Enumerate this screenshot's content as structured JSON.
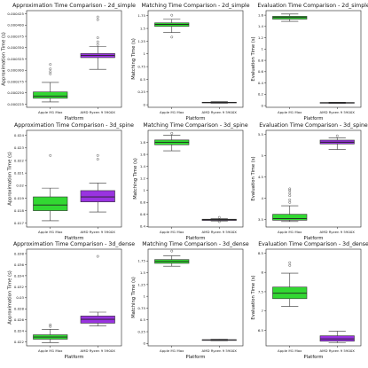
{
  "colors": {
    "apple": "#32d832",
    "amd": "#9933e0"
  },
  "chart_data": [
    {
      "type": "box",
      "title": "Approximation Time Comparison - 2d_simple",
      "xlabel": "Platform",
      "ylabel": "Approximation Time (s)",
      "categories": [
        "Apple M1 Max",
        "AMD Ryzen 9 5900X"
      ],
      "yticks": [
        0.000225,
        0.00025,
        0.000275,
        0.0003,
        0.000325,
        0.00035,
        0.000375,
        0.0004,
        0.000425
      ],
      "ylim": [
        0.000218,
        0.000432
      ],
      "series": [
        {
          "whislo": 0.00023,
          "q1": 0.000238,
          "med": 0.000243,
          "q3": 0.000252,
          "whishi": 0.000273,
          "fliers": [
            0.000292,
            0.000297,
            0.000303,
            0.000313
          ]
        },
        {
          "whislo": 0.000302,
          "q1": 0.000328,
          "med": 0.000333,
          "q3": 0.000337,
          "whishi": 0.000353,
          "fliers": [
            0.000357,
            0.000363,
            0.000372,
            0.000412,
            0.000418
          ]
        }
      ]
    },
    {
      "type": "box",
      "title": "Matching Time Comparison - 2d_simple",
      "xlabel": "Platform",
      "ylabel": "Matching Time (s)",
      "categories": [
        "Apple M1 Max",
        "AMD Ryzen 9 5900X"
      ],
      "yticks": [
        0,
        0.25,
        0.5,
        0.75,
        1.0,
        1.25,
        1.5,
        1.75
      ],
      "ylim": [
        -0.05,
        1.85
      ],
      "series": [
        {
          "whislo": 1.42,
          "q1": 1.54,
          "med": 1.58,
          "q3": 1.61,
          "whishi": 1.68,
          "fliers": [
            1.33,
            1.76
          ]
        },
        {
          "whislo": 0.03,
          "q1": 0.04,
          "med": 0.045,
          "q3": 0.05,
          "whishi": 0.06,
          "fliers": []
        }
      ]
    },
    {
      "type": "box",
      "title": "Evaluation Time Comparison - 2d_simple",
      "xlabel": "Platform",
      "ylabel": "Evaluation Time (s)",
      "categories": [
        "Apple M1 Max",
        "AMD Ryzen 9 5900X"
      ],
      "yticks": [
        0,
        0.2,
        0.4,
        0.6,
        0.8,
        1.0,
        1.2,
        1.4,
        1.6
      ],
      "ylim": [
        -0.03,
        1.68
      ],
      "series": [
        {
          "whislo": 1.49,
          "q1": 1.53,
          "med": 1.56,
          "q3": 1.58,
          "whishi": 1.62,
          "fliers": []
        },
        {
          "whislo": 0.04,
          "q1": 0.045,
          "med": 0.05,
          "q3": 0.055,
          "whishi": 0.06,
          "fliers": []
        }
      ]
    },
    {
      "type": "box",
      "title": "Approximation Time Comparison - 3d_spine",
      "xlabel": "Platform",
      "ylabel": "Approximation Time (s)",
      "categories": [
        "Apple M1 Max",
        "AMD Ryzen 9 5900X"
      ],
      "yticks": [
        0.017,
        0.018,
        0.019,
        0.02,
        0.021,
        0.022,
        0.023,
        0.024
      ],
      "ylim": [
        0.0167,
        0.0244
      ],
      "series": [
        {
          "whislo": 0.0172,
          "q1": 0.018,
          "med": 0.01845,
          "q3": 0.0191,
          "whishi": 0.0198,
          "fliers": [
            0.0224
          ]
        },
        {
          "whislo": 0.0179,
          "q1": 0.0187,
          "med": 0.0191,
          "q3": 0.0196,
          "whishi": 0.0202,
          "fliers": [
            0.0221,
            0.0224
          ]
        }
      ]
    },
    {
      "type": "box",
      "title": "Matching Time Comparison - 3d_spine",
      "xlabel": "Platform",
      "ylabel": "Matching Time (s)",
      "categories": [
        "Apple M1 Max",
        "AMD Ryzen 9 5900X"
      ],
      "yticks": [
        0.4,
        0.6,
        0.8,
        1.0,
        1.2,
        1.4,
        1.6,
        1.8
      ],
      "ylim": [
        0.39,
        2.0
      ],
      "series": [
        {
          "whislo": 1.66,
          "q1": 1.76,
          "med": 1.8,
          "q3": 1.84,
          "whishi": 1.92,
          "fliers": [
            1.95
          ]
        },
        {
          "whislo": 0.49,
          "q1": 0.5,
          "med": 0.51,
          "q3": 0.52,
          "whishi": 0.53,
          "fliers": [
            0.48,
            0.55
          ]
        }
      ]
    },
    {
      "type": "box",
      "title": "Evaluation Time Comparison - 3d_spine",
      "xlabel": "Platform",
      "ylabel": "Evaluation Time (s)",
      "categories": [
        "Apple M1 Max",
        "AMD Ryzen 9 5900X"
      ],
      "yticks": [
        3.5,
        4.0,
        4.5,
        5.0,
        5.5
      ],
      "ylim": [
        3.32,
        5.6
      ],
      "series": [
        {
          "whislo": 3.45,
          "q1": 3.48,
          "med": 3.52,
          "q3": 3.62,
          "whishi": 3.82,
          "fliers": [
            3.9,
            3.96,
            4.06,
            4.12,
            4.18,
            4.22
          ]
        },
        {
          "whislo": 5.15,
          "q1": 5.28,
          "med": 5.32,
          "q3": 5.37,
          "whishi": 5.42,
          "fliers": [
            5.47
          ]
        }
      ]
    },
    {
      "type": "box",
      "title": "Approximation Time Comparison - 3d_dense",
      "xlabel": "Platform",
      "ylabel": "Approximation Time (s)",
      "categories": [
        "Apple M1 Max",
        "AMD Ryzen 9 5900X"
      ],
      "yticks": [
        0.022,
        0.024,
        0.026,
        0.028,
        0.03,
        0.032,
        0.034,
        0.036,
        0.038
      ],
      "ylim": [
        0.0213,
        0.0388
      ],
      "series": [
        {
          "whislo": 0.0219,
          "q1": 0.0225,
          "med": 0.0229,
          "q3": 0.0233,
          "whishi": 0.0243,
          "fliers": [
            0.0248,
            0.0251
          ]
        },
        {
          "whislo": 0.0249,
          "q1": 0.0254,
          "med": 0.0261,
          "q3": 0.0267,
          "whishi": 0.0274,
          "fliers": [
            0.0375
          ]
        }
      ]
    },
    {
      "type": "box",
      "title": "Matching Time Comparison - 3d_dense",
      "xlabel": "Platform",
      "ylabel": "Matching Time (s)",
      "categories": [
        "Apple M1 Max",
        "AMD Ryzen 9 5900X"
      ],
      "yticks": [
        0,
        0.25,
        0.5,
        0.75,
        1.0,
        1.25,
        1.5,
        1.75
      ],
      "ylim": [
        -0.05,
        2.0
      ],
      "series": [
        {
          "whislo": 1.64,
          "q1": 1.7,
          "med": 1.74,
          "q3": 1.78,
          "whishi": 1.86,
          "fliers": [
            1.96
          ]
        },
        {
          "whislo": 0.06,
          "q1": 0.07,
          "med": 0.075,
          "q3": 0.08,
          "whishi": 0.09,
          "fliers": []
        }
      ]
    },
    {
      "type": "box",
      "title": "Evaluation Time Comparison - 3d_dense",
      "xlabel": "Platform",
      "ylabel": "Evaluation Time (s)",
      "categories": [
        "Apple M1 Max",
        "AMD Ryzen 9 5900X"
      ],
      "yticks": [
        6.5,
        7.0,
        7.5,
        8.0,
        8.5
      ],
      "ylim": [
        6.1,
        8.6
      ],
      "series": [
        {
          "whislo": 7.12,
          "q1": 7.32,
          "med": 7.46,
          "q3": 7.62,
          "whishi": 7.98,
          "fliers": [
            8.18,
            8.25
          ]
        },
        {
          "whislo": 6.18,
          "q1": 6.22,
          "med": 6.28,
          "q3": 6.36,
          "whishi": 6.48,
          "fliers": []
        }
      ]
    }
  ]
}
